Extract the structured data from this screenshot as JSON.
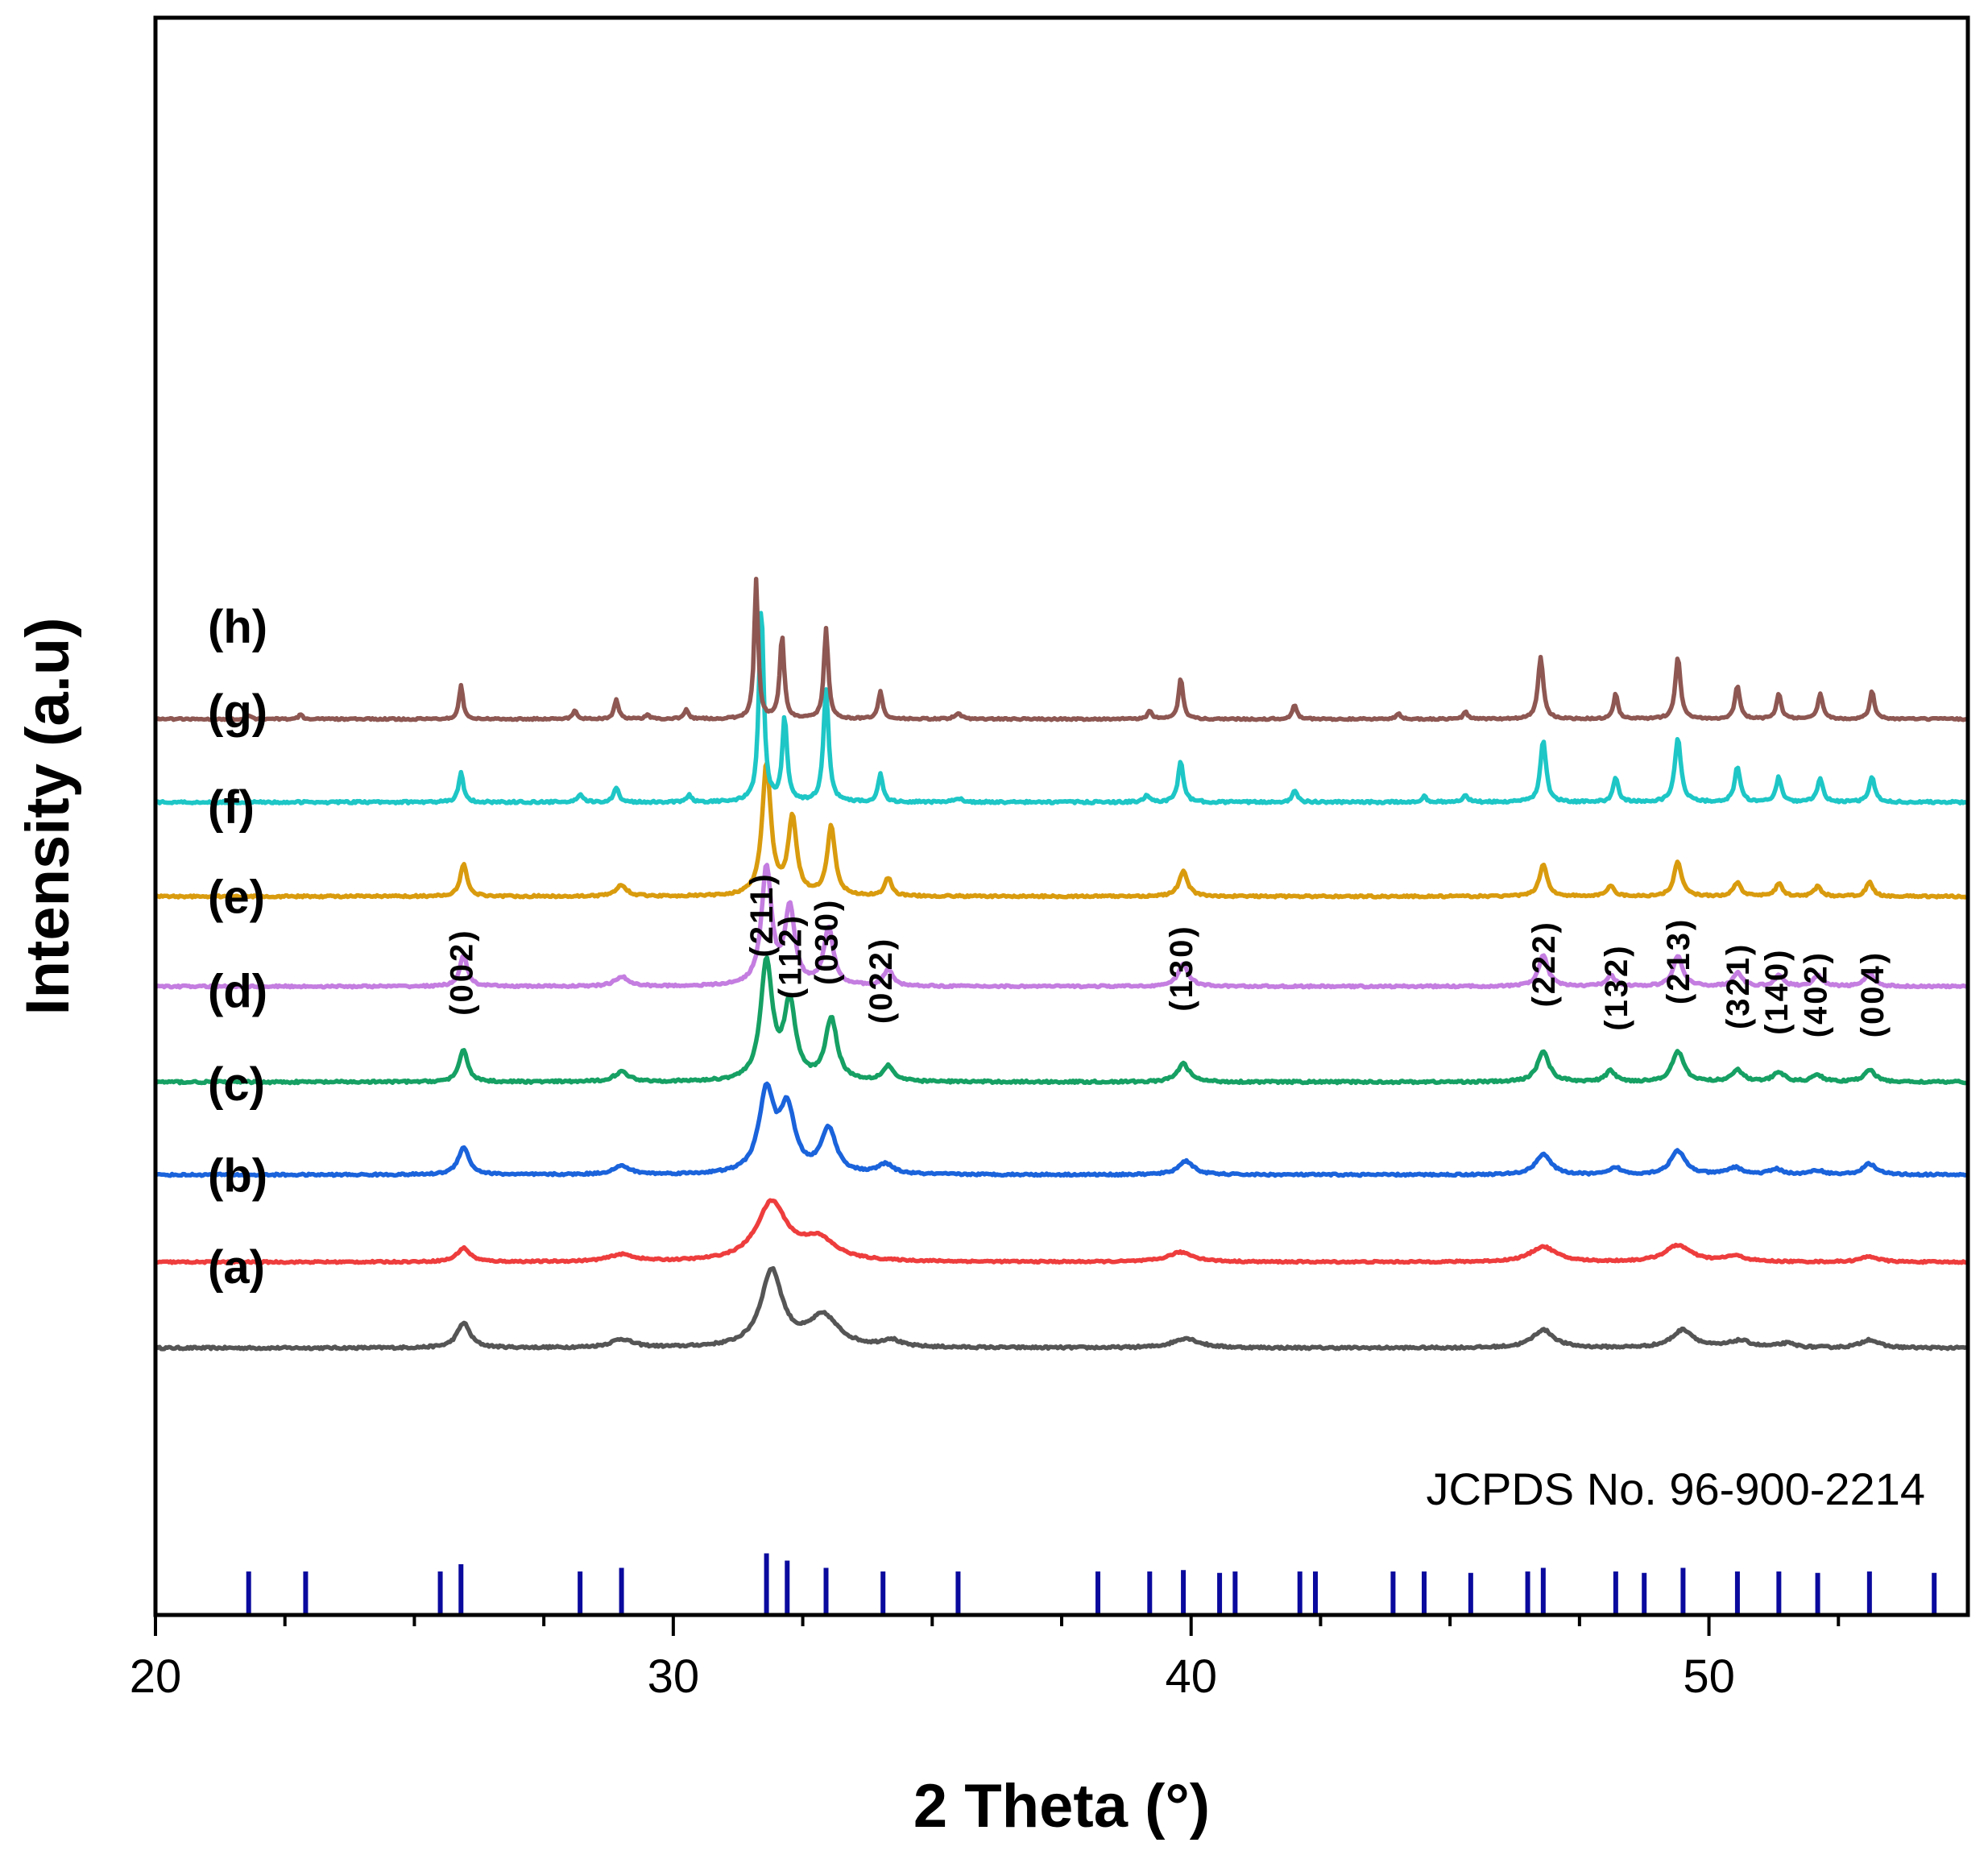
{
  "chart_data": {
    "type": "line",
    "title": "",
    "xlabel": "2 Theta (°)",
    "ylabel": "Intensity (a.u)",
    "xlim": [
      20,
      55
    ],
    "xticks": [
      20,
      30,
      40,
      50
    ],
    "x_minor_step": 2.5,
    "yticks_shown": false,
    "reference_label": "JCPDS No. 96-900-2214",
    "reference_lines": [
      {
        "x": 21.8,
        "h": 0.6
      },
      {
        "x": 22.9,
        "h": 0.6
      },
      {
        "x": 25.5,
        "h": 0.6
      },
      {
        "x": 25.9,
        "h": 0.7
      },
      {
        "x": 28.2,
        "h": 0.6
      },
      {
        "x": 29.0,
        "h": 0.65
      },
      {
        "x": 31.8,
        "h": 0.85
      },
      {
        "x": 32.2,
        "h": 0.75
      },
      {
        "x": 32.95,
        "h": 0.65
      },
      {
        "x": 34.05,
        "h": 0.6
      },
      {
        "x": 35.5,
        "h": 0.6
      },
      {
        "x": 38.2,
        "h": 0.6
      },
      {
        "x": 39.2,
        "h": 0.6
      },
      {
        "x": 39.85,
        "h": 0.62
      },
      {
        "x": 40.55,
        "h": 0.58
      },
      {
        "x": 40.85,
        "h": 0.6
      },
      {
        "x": 42.1,
        "h": 0.6
      },
      {
        "x": 42.4,
        "h": 0.6
      },
      {
        "x": 43.9,
        "h": 0.6
      },
      {
        "x": 44.5,
        "h": 0.6
      },
      {
        "x": 45.4,
        "h": 0.58
      },
      {
        "x": 46.5,
        "h": 0.6
      },
      {
        "x": 46.8,
        "h": 0.65
      },
      {
        "x": 48.2,
        "h": 0.6
      },
      {
        "x": 48.75,
        "h": 0.58
      },
      {
        "x": 49.5,
        "h": 0.65
      },
      {
        "x": 50.55,
        "h": 0.6
      },
      {
        "x": 51.35,
        "h": 0.6
      },
      {
        "x": 52.1,
        "h": 0.58
      },
      {
        "x": 53.1,
        "h": 0.6
      },
      {
        "x": 54.35,
        "h": 0.58
      }
    ],
    "peak_labels": [
      {
        "label": "(002)",
        "x": 25.9,
        "y": 1.78
      },
      {
        "label": "(211)",
        "x": 31.7,
        "y": 2.2
      },
      {
        "label": "(112)",
        "x": 32.25,
        "y": 1.9
      },
      {
        "label": "(030)",
        "x": 32.95,
        "y": 2.0
      },
      {
        "label": "(022)",
        "x": 34.0,
        "y": 1.72
      },
      {
        "label": "(130)",
        "x": 39.8,
        "y": 1.81
      },
      {
        "label": "(222)",
        "x": 46.8,
        "y": 1.84
      },
      {
        "label": "(132)",
        "x": 48.2,
        "y": 1.67
      },
      {
        "label": "(213)",
        "x": 49.4,
        "y": 1.86
      },
      {
        "label": "(321)",
        "x": 50.55,
        "y": 1.68
      },
      {
        "label": "(140)",
        "x": 51.3,
        "y": 1.64
      },
      {
        "label": "(402)",
        "x": 52.05,
        "y": 1.62
      },
      {
        "label": "(004)",
        "x": 53.15,
        "y": 1.62
      }
    ],
    "series": [
      {
        "name": "(a)",
        "color": "#555555",
        "baseline": -0.62,
        "label_y": -0.15,
        "noise": 0.008,
        "peaks": [
          [
            25.95,
            0.18,
            0.3
          ],
          [
            29.0,
            0.06,
            0.5
          ],
          [
            31.9,
            0.55,
            0.5
          ],
          [
            32.9,
            0.22,
            0.7
          ],
          [
            34.2,
            0.05,
            0.4
          ],
          [
            39.9,
            0.07,
            0.6
          ],
          [
            46.8,
            0.13,
            0.5
          ],
          [
            49.5,
            0.13,
            0.5
          ],
          [
            50.6,
            0.05,
            0.5
          ],
          [
            51.5,
            0.03,
            0.4
          ],
          [
            53.1,
            0.06,
            0.4
          ]
        ]
      },
      {
        "name": "(b)",
        "color": "#ee3d3d",
        "baseline": 0.0,
        "label_y": 0.51,
        "noise": 0.006,
        "peaks": [
          [
            25.95,
            0.1,
            0.3
          ],
          [
            29.0,
            0.05,
            0.6
          ],
          [
            31.9,
            0.42,
            0.7
          ],
          [
            32.8,
            0.15,
            0.8
          ],
          [
            39.8,
            0.07,
            0.6
          ],
          [
            46.8,
            0.11,
            0.6
          ],
          [
            49.4,
            0.12,
            0.6
          ],
          [
            50.5,
            0.04,
            0.5
          ],
          [
            53.1,
            0.04,
            0.4
          ]
        ]
      },
      {
        "name": "(c)",
        "color": "#1a63db",
        "baseline": 0.63,
        "label_y": 1.17,
        "noise": 0.007,
        "peaks": [
          [
            25.95,
            0.2,
            0.25
          ],
          [
            29.0,
            0.06,
            0.4
          ],
          [
            31.8,
            0.58,
            0.35
          ],
          [
            32.2,
            0.45,
            0.35
          ],
          [
            33.0,
            0.32,
            0.35
          ],
          [
            34.1,
            0.07,
            0.35
          ],
          [
            39.9,
            0.1,
            0.35
          ],
          [
            46.8,
            0.15,
            0.35
          ],
          [
            48.2,
            0.05,
            0.25
          ],
          [
            49.4,
            0.17,
            0.35
          ],
          [
            50.5,
            0.05,
            0.35
          ],
          [
            51.3,
            0.04,
            0.3
          ],
          [
            52.1,
            0.03,
            0.3
          ],
          [
            53.1,
            0.08,
            0.3
          ]
        ]
      },
      {
        "name": "(d)",
        "color": "#16a063",
        "baseline": 1.3,
        "label_y": 1.84,
        "noise": 0.008,
        "peaks": [
          [
            25.95,
            0.23,
            0.2
          ],
          [
            29.0,
            0.07,
            0.35
          ],
          [
            31.8,
            0.85,
            0.27
          ],
          [
            32.25,
            0.55,
            0.27
          ],
          [
            33.05,
            0.45,
            0.27
          ],
          [
            34.15,
            0.11,
            0.25
          ],
          [
            39.85,
            0.13,
            0.28
          ],
          [
            46.8,
            0.22,
            0.27
          ],
          [
            48.1,
            0.08,
            0.22
          ],
          [
            49.4,
            0.22,
            0.27
          ],
          [
            50.55,
            0.09,
            0.25
          ],
          [
            51.35,
            0.07,
            0.25
          ],
          [
            52.1,
            0.05,
            0.25
          ],
          [
            53.1,
            0.09,
            0.25
          ]
        ]
      },
      {
        "name": "(e)",
        "color": "#c47de0",
        "baseline": 1.99,
        "label_y": 2.52,
        "noise": 0.007,
        "peaks": [
          [
            25.95,
            0.22,
            0.18
          ],
          [
            29.0,
            0.07,
            0.3
          ],
          [
            31.8,
            0.85,
            0.23
          ],
          [
            32.25,
            0.55,
            0.23
          ],
          [
            33.0,
            0.42,
            0.22
          ],
          [
            34.15,
            0.12,
            0.2
          ],
          [
            39.85,
            0.16,
            0.24
          ],
          [
            46.8,
            0.22,
            0.22
          ],
          [
            48.1,
            0.08,
            0.2
          ],
          [
            49.4,
            0.22,
            0.22
          ],
          [
            50.55,
            0.1,
            0.2
          ],
          [
            51.35,
            0.08,
            0.2
          ],
          [
            52.1,
            0.08,
            0.2
          ],
          [
            53.1,
            0.1,
            0.2
          ]
        ]
      },
      {
        "name": "(f)",
        "color": "#d99b0e",
        "baseline": 2.64,
        "label_y": 3.17,
        "noise": 0.007,
        "peaks": [
          [
            25.95,
            0.23,
            0.16
          ],
          [
            29.0,
            0.08,
            0.25
          ],
          [
            31.8,
            0.95,
            0.2
          ],
          [
            32.3,
            0.55,
            0.2
          ],
          [
            33.05,
            0.5,
            0.18
          ],
          [
            34.15,
            0.13,
            0.16
          ],
          [
            39.85,
            0.18,
            0.2
          ],
          [
            46.8,
            0.23,
            0.18
          ],
          [
            48.1,
            0.08,
            0.16
          ],
          [
            49.4,
            0.25,
            0.18
          ],
          [
            50.55,
            0.1,
            0.17
          ],
          [
            51.35,
            0.09,
            0.16
          ],
          [
            52.1,
            0.07,
            0.16
          ],
          [
            53.1,
            0.1,
            0.16
          ]
        ]
      },
      {
        "name": "(g)",
        "color": "#1ec6c6",
        "baseline": 3.32,
        "label_y": 3.86,
        "noise": 0.008,
        "peaks": [
          [
            25.9,
            0.22,
            0.11
          ],
          [
            28.2,
            0.05,
            0.12
          ],
          [
            28.9,
            0.1,
            0.12
          ],
          [
            30.3,
            0.05,
            0.12
          ],
          [
            31.7,
            1.4,
            0.11
          ],
          [
            32.15,
            0.6,
            0.11
          ],
          [
            32.95,
            0.81,
            0.12
          ],
          [
            34.0,
            0.2,
            0.11
          ],
          [
            35.5,
            0.03,
            0.15
          ],
          [
            39.15,
            0.05,
            0.12
          ],
          [
            39.8,
            0.3,
            0.12
          ],
          [
            42.0,
            0.08,
            0.12
          ],
          [
            44.5,
            0.04,
            0.12
          ],
          [
            45.3,
            0.05,
            0.12
          ],
          [
            46.8,
            0.45,
            0.13
          ],
          [
            48.2,
            0.18,
            0.12
          ],
          [
            49.4,
            0.47,
            0.14
          ],
          [
            50.55,
            0.25,
            0.13
          ],
          [
            51.35,
            0.18,
            0.13
          ],
          [
            52.15,
            0.17,
            0.13
          ],
          [
            53.15,
            0.18,
            0.13
          ]
        ]
      },
      {
        "name": "(h)",
        "color": "#8e5752",
        "baseline": 3.92,
        "label_y": 4.47,
        "noise": 0.006,
        "peaks": [
          [
            21.8,
            0.03,
            0.1
          ],
          [
            22.8,
            0.03,
            0.1
          ],
          [
            25.9,
            0.25,
            0.09
          ],
          [
            28.1,
            0.06,
            0.1
          ],
          [
            28.9,
            0.14,
            0.1
          ],
          [
            29.5,
            0.03,
            0.1
          ],
          [
            30.25,
            0.07,
            0.1
          ],
          [
            31.6,
            1.0,
            0.09
          ],
          [
            32.1,
            0.6,
            0.1
          ],
          [
            32.95,
            0.65,
            0.1
          ],
          [
            34.0,
            0.2,
            0.1
          ],
          [
            35.5,
            0.04,
            0.15
          ],
          [
            39.2,
            0.06,
            0.1
          ],
          [
            39.8,
            0.3,
            0.1
          ],
          [
            42.0,
            0.1,
            0.1
          ],
          [
            44.0,
            0.04,
            0.1
          ],
          [
            45.3,
            0.05,
            0.1
          ],
          [
            46.75,
            0.45,
            0.12
          ],
          [
            48.2,
            0.18,
            0.1
          ],
          [
            49.4,
            0.45,
            0.12
          ],
          [
            50.55,
            0.24,
            0.11
          ],
          [
            51.35,
            0.18,
            0.11
          ],
          [
            52.15,
            0.18,
            0.11
          ],
          [
            53.15,
            0.2,
            0.11
          ]
        ]
      }
    ]
  }
}
